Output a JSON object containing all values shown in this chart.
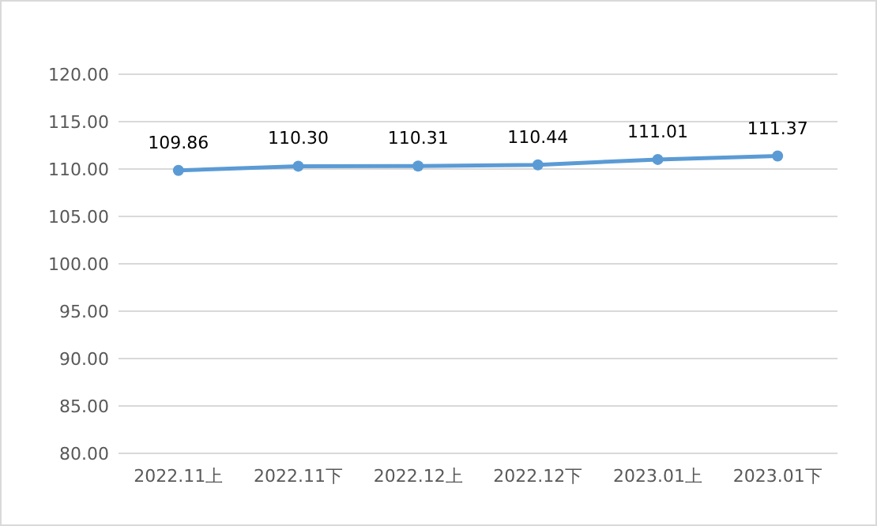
{
  "chart_data": {
    "type": "line",
    "categories": [
      "2022.11上",
      "2022.11下",
      "2022.12上",
      "2022.12下",
      "2023.01上",
      "2023.01下"
    ],
    "series": [
      {
        "color": "#5b9bd5",
        "values": [
          109.86,
          110.3,
          110.31,
          110.44,
          111.01,
          111.37
        ]
      }
    ],
    "ylim": [
      80,
      120
    ],
    "yticks": [
      {
        "value": 80,
        "label": "80.00"
      },
      {
        "value": 85,
        "label": "85.00"
      },
      {
        "value": 90,
        "label": "90.00"
      },
      {
        "value": 95,
        "label": "95.00"
      },
      {
        "value": 100,
        "label": "100.00"
      },
      {
        "value": 105,
        "label": "105.00"
      },
      {
        "value": 110,
        "label": "110.00"
      },
      {
        "value": 115,
        "label": "115.00"
      },
      {
        "value": 120,
        "label": "120.00"
      }
    ],
    "value_labels": [
      "109.86",
      "110.30",
      "110.31",
      "110.44",
      "111.01",
      "111.37"
    ],
    "grid": "y",
    "marker": "circle",
    "line_style": "solid"
  }
}
